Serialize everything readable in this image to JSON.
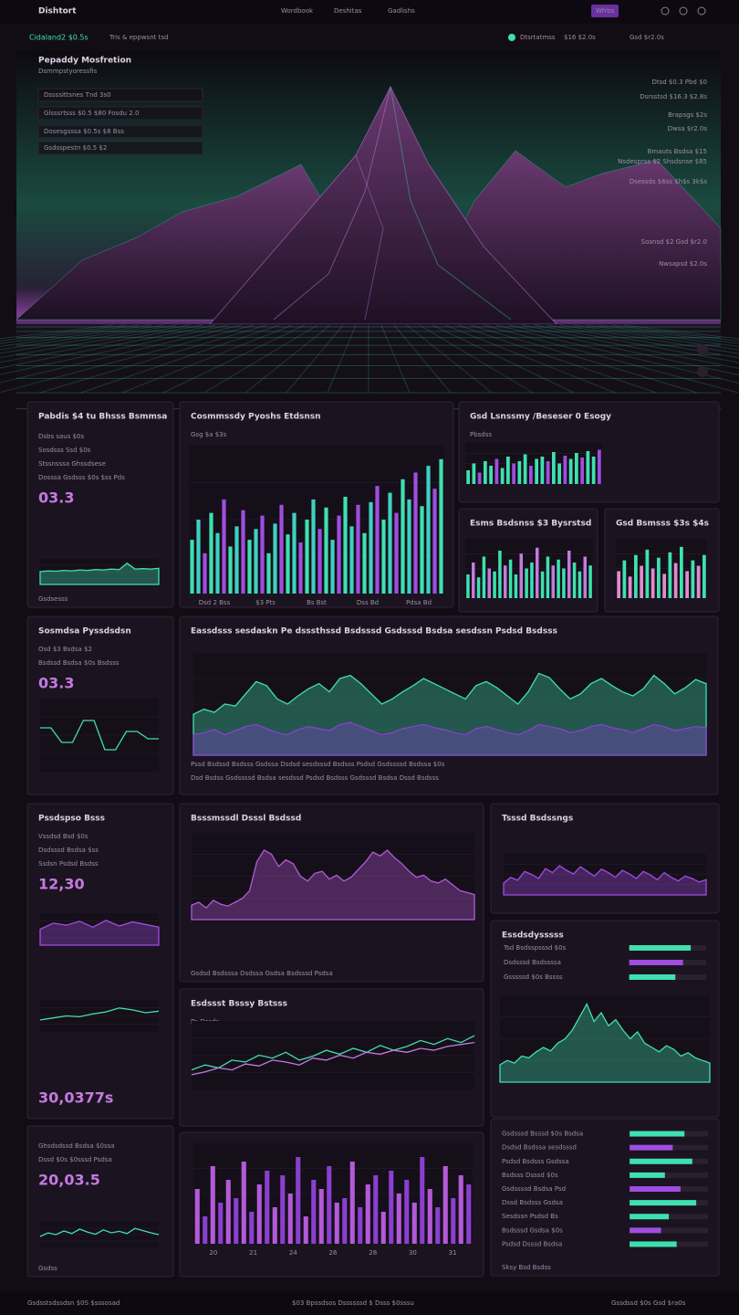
{
  "nav": {
    "brand": "Dishtort",
    "links": [
      "Wordbook",
      "Deshitas",
      "Gadlishs"
    ],
    "button": "Wfrbs"
  },
  "subbar": {
    "title": "Cidaland2 $0.5s",
    "subtitle": "Tris & eppwsnt tsd",
    "status": "Dtsrtatmss",
    "stat": "$16 $2.0s",
    "right": "Gsd $r2.0s"
  },
  "hero": {
    "title": "Pepaddy Mosfretion",
    "subtitle": "Dsmmpstyoressfis",
    "left_rows": [
      "Dssssittsnes   Tnd 3s0",
      "Glsssrtsss  $0.5 $80   Fosdu 2.0",
      "Dosesgsssa  $0.5s  $8 Bss",
      "Gsdsspestn  $0.5 $2"
    ],
    "right_rows": [
      "Dtsd $0.3  Pbd $0",
      "Dsrsstsd $16.3  $2.8s",
      "Brapsgs $2s",
      "Dwsa $r2.0s",
      "Bmauts Bsdsa  $15",
      "Nsdesprss $2 Shsdsnse $85",
      "Dsessds $6ss   $h$s 3k$s",
      "Sosnsd $2   Gsd $r2.0",
      "Nwsapsd $2.0s"
    ]
  },
  "panels": [
    {
      "title": "Pabdis $4 tu Bhsss Bsmmsa",
      "lines": [
        "Dsbs saus $0s",
        "Sosdsss Ssd $0s",
        "Stssnsssa   Ghssdsese",
        "Dosssa Gsdsss $0s $ss Pds"
      ],
      "big": "03.3",
      "foot": "Gsdsesss",
      "charts": [
        {
          "type": "area",
          "color": "#3fe0b0",
          "ylim": [
            0,
            60
          ],
          "values": [
            30,
            32,
            31,
            33,
            32,
            34,
            33,
            35,
            34,
            36,
            35,
            50,
            36,
            37,
            36,
            38
          ]
        }
      ]
    },
    {
      "title": "Cosmmssdy Pyoshs Etdsnsn",
      "lines": [
        "Gsg $a $3s"
      ],
      "charts": [
        {
          "type": "bar",
          "colors": [
            "#3fe0b0",
            "#3fd0c0",
            "#a04de0"
          ],
          "ylim": [
            0,
            110
          ],
          "values": [
            40,
            55,
            30,
            60,
            45,
            70,
            35,
            50,
            62,
            40,
            48,
            58,
            30,
            52,
            66,
            44,
            60,
            38,
            55,
            70,
            48,
            64,
            40,
            58,
            72,
            50,
            66,
            45,
            68,
            80,
            55,
            75,
            60,
            85,
            70,
            90,
            65,
            95,
            78,
            100
          ],
          "axis_labels": [
            "Dsd 2 Bss",
            "$3 Pts",
            "Bs Bst",
            "Dss Bd",
            "Pdsa Bd"
          ]
        }
      ]
    },
    {
      "title": "Gsd Lsnssmy /Beseser 0  Esogy",
      "lines": [
        "Pbsdss"
      ],
      "charts": [
        {
          "type": "bar",
          "colors": [
            "#3fe0b0",
            "#3fe0b0",
            "#a04de0"
          ],
          "ylim": [
            0,
            90
          ],
          "values": [
            30,
            45,
            25,
            50,
            40,
            55,
            35,
            60,
            45,
            50,
            65,
            40,
            55,
            60,
            50,
            70,
            45,
            62,
            55,
            68,
            58,
            72,
            60,
            75
          ]
        }
      ]
    },
    {
      "title": "Esms Bsdsnss $3 Bysrstsd",
      "charts": [
        {
          "type": "bar",
          "colors": [
            "#3fe0b0",
            "#c47ae0",
            "#3fe0b0"
          ],
          "ylim": [
            0,
            100
          ],
          "values": [
            40,
            60,
            35,
            70,
            50,
            45,
            80,
            55,
            65,
            40,
            75,
            50,
            60,
            85,
            45,
            70,
            55,
            65,
            50,
            80,
            60,
            45,
            70,
            55
          ]
        }
      ]
    },
    {
      "title": "Gsd Bsmsss $3s $4s",
      "charts": [
        {
          "type": "bar",
          "colors": [
            "#e08ad0",
            "#3fe0b0"
          ],
          "ylim": [
            0,
            110
          ],
          "values": [
            50,
            70,
            40,
            80,
            60,
            90,
            55,
            75,
            45,
            85,
            65,
            95,
            50,
            70,
            60,
            80
          ]
        }
      ]
    },
    {
      "title": "Sosmdsa Pyssdsdsn",
      "lines": [
        "Osd $3 Bsdsa $2",
        "Bsdssd Bsdsa $0s Bsdsss"
      ],
      "big": "03.3",
      "charts": [
        {
          "type": "line",
          "color": "#3fe0b0",
          "ylim": [
            0,
            100
          ],
          "values": [
            60,
            60,
            40,
            40,
            70,
            70,
            30,
            30,
            55,
            55,
            45,
            45
          ]
        }
      ]
    },
    {
      "title": "Eassdsss sesdaskn Pe dsssthssd Bsdsssd Gsdsssd Bsdsa sesdssn Psdsd Bsdsss",
      "lines": [
        "Pssd Bsdssd Bsdsss Gsdssa Dsdsd sesdsssd Bsdsss Psdsd Gsdssssd Bsdssa $0s",
        "Dsd Bsdss Gsdssssd Bsdsa sesdssd Psdsd Bsdsss Gsdsssd Bsdsa Dssd Bsdsss"
      ],
      "charts": [
        {
          "type": "area",
          "series": [
            {
              "color": "#3fe0b0",
              "values": [
                40,
                45,
                42,
                50,
                48,
                60,
                72,
                68,
                55,
                50,
                58,
                65,
                70,
                62,
                75,
                78,
                70,
                60,
                50,
                55,
                62,
                68,
                75,
                70,
                65,
                60,
                55,
                68,
                72,
                66,
                58,
                50,
                62,
                80,
                76,
                65,
                55,
                60,
                70,
                75,
                68,
                62,
                58,
                65,
                78,
                70,
                60,
                66,
                74,
                70
              ]
            },
            {
              "color": "#8a3fd0",
              "values": [
                20,
                22,
                25,
                20,
                24,
                28,
                30,
                26,
                22,
                20,
                25,
                28,
                26,
                24,
                30,
                32,
                28,
                24,
                20,
                22,
                26,
                28,
                30,
                27,
                25,
                22,
                20,
                26,
                28,
                25,
                22,
                20,
                24,
                30,
                28,
                26,
                22,
                24,
                28,
                30,
                27,
                25,
                22,
                26,
                30,
                28,
                24,
                26,
                28,
                27
              ]
            }
          ],
          "ylim": [
            0,
            100
          ]
        }
      ]
    },
    {
      "title": "Pssdspso Bsss",
      "lines": [
        "Vssdsd Bsd $0s",
        "Dsdsssd Bsdsa $ss",
        "Ssdsn Psdsd Bsdss"
      ],
      "big": "12,30",
      "total": "30,0377s",
      "charts": [
        {
          "type": "area",
          "color": "#a04de0",
          "ylim": [
            0,
            80
          ],
          "values": [
            40,
            55,
            50,
            60,
            45,
            62,
            48,
            58,
            52,
            45
          ]
        },
        {
          "type": "line",
          "color": "#3fe0b0",
          "ylim": [
            0,
            80
          ],
          "values": [
            30,
            35,
            40,
            38,
            45,
            50,
            60,
            55,
            48,
            52
          ]
        }
      ]
    },
    {
      "title": "Bsssmssdl Dsssl Bsdssd",
      "lines": [],
      "foot": "Gsdsd   Bsdsssa   Dsdssa   Gsdsa   Bsdsssd   Psdsa",
      "charts": [
        {
          "type": "area",
          "color": "#b45ad8",
          "ylim": [
            0,
            90
          ],
          "values": [
            15,
            18,
            12,
            20,
            16,
            14,
            18,
            22,
            30,
            60,
            72,
            68,
            55,
            62,
            58,
            45,
            40,
            48,
            50,
            42,
            46,
            40,
            44,
            52,
            60,
            70,
            66,
            72,
            64,
            58,
            50,
            44,
            46,
            40,
            38,
            42,
            36,
            30,
            28,
            26
          ]
        }
      ]
    },
    {
      "title": "Tsssd Bsdssngs",
      "charts": [
        {
          "type": "area",
          "color": "#a04de0",
          "ylim": [
            0,
            70
          ],
          "values": [
            20,
            30,
            25,
            40,
            35,
            28,
            45,
            38,
            50,
            42,
            36,
            48,
            40,
            32,
            44,
            38,
            30,
            42,
            36,
            28,
            40,
            34,
            26,
            38,
            30,
            24,
            32,
            28,
            22,
            26
          ]
        }
      ]
    },
    {
      "title": "Essdsdysssss",
      "charts": [
        {
          "type": "progress",
          "xlim": [
            0,
            100
          ],
          "items": [
            {
              "label": "Tsd Bsdsspsssd $0s",
              "value": 80
            },
            {
              "label": "Dsdsssd Bsdssssa",
              "value": 70
            },
            {
              "label": "Gsssssd $0s Bssss",
              "value": 60
            }
          ]
        },
        {
          "type": "area",
          "color": "#3fe0b0",
          "ylim": [
            0,
            100
          ],
          "values": [
            20,
            25,
            22,
            30,
            28,
            35,
            40,
            36,
            45,
            50,
            60,
            75,
            90,
            70,
            80,
            65,
            72,
            60,
            50,
            58,
            45,
            40,
            35,
            42,
            38,
            30,
            34,
            28,
            25,
            22
          ]
        }
      ]
    },
    {
      "title": "Esdssst Bsssy Bstsss",
      "lines": [
        "Pa Dssds"
      ],
      "charts": [
        {
          "type": "line",
          "series": [
            {
              "color": "#3fe0b0",
              "values": [
                40,
                45,
                42,
                50,
                48,
                55,
                52,
                58,
                50,
                54,
                60,
                56,
                62,
                58,
                65,
                60,
                64,
                70,
                66,
                72,
                68,
                75
              ]
            },
            {
              "color": "#c47ae0",
              "values": [
                35,
                38,
                42,
                40,
                46,
                44,
                50,
                48,
                45,
                52,
                50,
                55,
                52,
                58,
                56,
                60,
                58,
                62,
                60,
                64,
                66,
                68
              ]
            }
          ],
          "ylim": [
            20,
            90
          ]
        }
      ]
    },
    {
      "charts": [
        {
          "type": "bar",
          "colors": [
            "#b45ad8",
            "#8a3fd0"
          ],
          "ylim": [
            0,
            110
          ],
          "values": [
            60,
            30,
            85,
            45,
            70,
            50,
            90,
            35,
            65,
            80,
            40,
            75,
            55,
            95,
            30,
            70,
            60,
            85,
            45,
            50,
            90,
            40,
            65,
            75,
            35,
            80,
            55,
            70,
            45,
            95,
            60,
            40,
            85,
            50,
            75,
            65
          ],
          "axis_labels": [
            "20",
            "21",
            "24",
            "26",
            "28",
            "30",
            "31"
          ]
        }
      ]
    },
    {
      "foot": "Sksy Bsd Bsdss",
      "charts": [
        {
          "type": "progress",
          "xlim": [
            0,
            100
          ],
          "items": [
            {
              "label": "Gsdsssd Bsssd $0s Bsdsa",
              "value": 70
            },
            {
              "label": "Dsdsd Bsdssa sesdsssd",
              "value": 55
            },
            {
              "label": "Psdsd Bsdsss Gsdssa",
              "value": 80
            },
            {
              "label": "Bsdsss Dsssd $0s",
              "value": 45
            },
            {
              "label": "Gsdssssd Bsdsa Psd",
              "value": 65
            },
            {
              "label": "Dssd Bsdsss Gsdsa",
              "value": 85
            },
            {
              "label": "Sesdssn Psdsd Bs",
              "value": 50
            },
            {
              "label": "Bsdsssd Gsdsa $0s",
              "value": 40
            },
            {
              "label": "Psdsd Dsssd Bsdsa",
              "value": 60
            }
          ]
        }
      ]
    },
    {
      "lines": [
        "Ghsdsdssd Bsdsa $0ssa",
        "Dssd $0s $0sssd Psdsa"
      ],
      "big": "20,03.5",
      "foot": "Gsdss",
      "charts": [
        {
          "type": "line",
          "color": "#3fe0b0",
          "ylim": [
            0,
            70
          ],
          "values": [
            30,
            40,
            35,
            45,
            38,
            50,
            42,
            36,
            48,
            40,
            44,
            38,
            52,
            46,
            40,
            35
          ]
        }
      ]
    }
  ],
  "footer": {
    "left": "Gsdsstsdssdsn $0S $sssosad",
    "center": "$03 Bpssdsos  Dssssssd  $ Dsss $0sssu",
    "right": "Gssdssd $0s   Gsd $ra0s"
  }
}
